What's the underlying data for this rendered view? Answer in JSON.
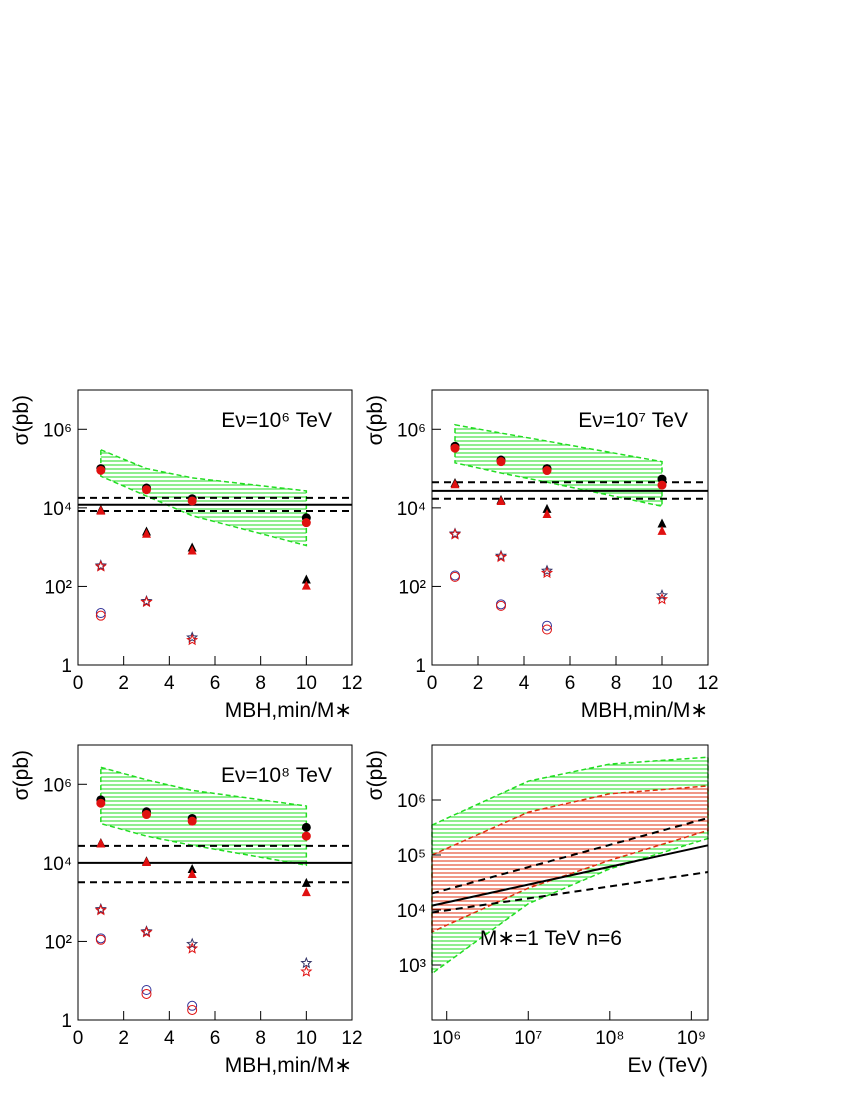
{
  "chart_data": [
    {
      "type": "scatter",
      "annotation": "Eν=10⁶ TeV",
      "ylabel": "σ(pb)",
      "xlabel": "MBH,min/M∗",
      "xlim": [
        0,
        12
      ],
      "xticks": [
        0,
        2,
        4,
        6,
        8,
        10,
        12
      ],
      "ylim": [
        1,
        10000000
      ],
      "ylog": true,
      "yticks": [
        1,
        {
          "value": 100,
          "label": "10²"
        },
        {
          "value": 10000,
          "label": "10⁴"
        },
        {
          "value": 1000000,
          "label": "10⁶"
        }
      ],
      "x": [
        1,
        3,
        5,
        10
      ],
      "band": {
        "color": "#22dd22",
        "upper": [
          300000,
          100000,
          58000,
          27000
        ],
        "lower": [
          64000,
          20000,
          6300,
          1100
        ]
      },
      "hlines": [
        {
          "value": 18000,
          "dash": true
        },
        {
          "value": 12000,
          "dash": false
        },
        {
          "value": 8300,
          "dash": true
        }
      ],
      "series": [
        {
          "marker": "circle",
          "color": "#000000",
          "values": [
            100000,
            32000,
            17000,
            5600
          ]
        },
        {
          "marker": "circle",
          "color": "#e01010",
          "values": [
            90000,
            29000,
            15000,
            4200
          ]
        },
        {
          "marker": "triangle",
          "color": "#000000",
          "values": [
            9000,
            2500,
            980,
            150
          ]
        },
        {
          "marker": "triangle",
          "color": "#e01010",
          "values": [
            8500,
            2200,
            820,
            105
          ]
        },
        {
          "marker": "star",
          "color": "#333366",
          "values": [
            340,
            42,
            5,
            null
          ]
        },
        {
          "marker": "star",
          "color": "#e01010",
          "values": [
            320,
            40,
            4.3,
            null
          ]
        },
        {
          "marker": "open-circle",
          "color": "#333399",
          "values": [
            21,
            null,
            null,
            null
          ]
        },
        {
          "marker": "open-circle",
          "color": "#e01010",
          "values": [
            18,
            null,
            null,
            null
          ]
        }
      ]
    },
    {
      "type": "scatter",
      "annotation": "Eν=10⁷ TeV",
      "ylabel": "σ(pb)",
      "xlabel": "MBH,min/M∗",
      "xlim": [
        0,
        12
      ],
      "xticks": [
        0,
        2,
        4,
        6,
        8,
        10,
        12
      ],
      "ylim": [
        1,
        10000000
      ],
      "ylog": true,
      "yticks": [
        1,
        {
          "value": 100,
          "label": "10²"
        },
        {
          "value": 10000,
          "label": "10⁴"
        },
        {
          "value": 1000000,
          "label": "10⁶"
        }
      ],
      "x": [
        1,
        3,
        5,
        10
      ],
      "band": {
        "color": "#22dd22",
        "upper": [
          1300000,
          800000,
          500000,
          150000
        ],
        "lower": [
          140000,
          77000,
          45000,
          11000
        ]
      },
      "hlines": [
        {
          "value": 45000,
          "dash": true
        },
        {
          "value": 27000,
          "dash": false
        },
        {
          "value": 17000,
          "dash": true
        }
      ],
      "series": [
        {
          "marker": "circle",
          "color": "#000000",
          "values": [
            370000,
            165000,
            100000,
            54000
          ]
        },
        {
          "marker": "circle",
          "color": "#e01010",
          "values": [
            330000,
            150000,
            89000,
            38000
          ]
        },
        {
          "marker": "triangle",
          "color": "#000000",
          "values": [
            43000,
            16000,
            9400,
            4000
          ]
        },
        {
          "marker": "triangle",
          "color": "#e01010",
          "values": [
            40000,
            15000,
            7000,
            2600
          ]
        },
        {
          "marker": "star",
          "color": "#333366",
          "values": [
            2200,
            600,
            250,
            59
          ]
        },
        {
          "marker": "star",
          "color": "#e01010",
          "values": [
            2100,
            560,
            220,
            47
          ]
        },
        {
          "marker": "open-circle",
          "color": "#333399",
          "values": [
            190,
            35,
            10,
            null
          ]
        },
        {
          "marker": "open-circle",
          "color": "#e01010",
          "values": [
            175,
            32,
            8,
            null
          ]
        }
      ]
    },
    {
      "type": "scatter",
      "annotation": "Eν=10⁸ TeV",
      "ylabel": "σ(pb)",
      "xlabel": "MBH,min/M∗",
      "xlim": [
        0,
        12
      ],
      "xticks": [
        0,
        2,
        4,
        6,
        8,
        10,
        12
      ],
      "ylim": [
        1,
        10000000
      ],
      "ylog": true,
      "yticks": [
        1,
        {
          "value": 100,
          "label": "10²"
        },
        {
          "value": 10000,
          "label": "10⁴"
        },
        {
          "value": 1000000,
          "label": "10⁶"
        }
      ],
      "x": [
        1,
        3,
        5,
        10
      ],
      "band": {
        "color": "#22dd22",
        "upper": [
          2700000,
          1300000,
          700000,
          280000
        ],
        "lower": [
          100000,
          48000,
          28000,
          8700
        ]
      },
      "hlines": [
        {
          "value": 27000,
          "dash": true
        },
        {
          "value": 10000,
          "dash": false
        },
        {
          "value": 3200,
          "dash": true
        }
      ],
      "series": [
        {
          "marker": "circle",
          "color": "#000000",
          "values": [
            400000,
            200000,
            135000,
            80000
          ]
        },
        {
          "marker": "circle",
          "color": "#e01010",
          "values": [
            330000,
            170000,
            115000,
            48000
          ]
        },
        {
          "marker": "triangle",
          "color": "#000000",
          "values": [
            32000,
            11000,
            7000,
            3100
          ]
        },
        {
          "marker": "triangle",
          "color": "#e01010",
          "values": [
            31000,
            10500,
            5200,
            1800
          ]
        },
        {
          "marker": "star",
          "color": "#333366",
          "values": [
            660,
            180,
            86,
            28
          ]
        },
        {
          "marker": "star",
          "color": "#e01010",
          "values": [
            620,
            170,
            66,
            17
          ]
        },
        {
          "marker": "open-circle",
          "color": "#333399",
          "values": [
            120,
            5.8,
            2.3,
            null
          ]
        },
        {
          "marker": "open-circle",
          "color": "#e01010",
          "values": [
            110,
            4.6,
            1.8,
            null
          ]
        }
      ]
    },
    {
      "type": "line",
      "annotation": "M∗=1 TeV  n=6",
      "ylabel": "σ(pb)",
      "xlabel": "Eν (TeV)",
      "xlim": [
        660000,
        1600000000
      ],
      "xlog": true,
      "xticks": [
        {
          "value": 1000000,
          "label": "10⁶"
        },
        {
          "value": 10000000,
          "label": "10⁷"
        },
        {
          "value": 100000000,
          "label": "10⁸"
        },
        {
          "value": 1000000000,
          "label": "10⁹"
        }
      ],
      "ylim": [
        100,
        10000000
      ],
      "ylog": true,
      "yticks": [
        {
          "value": 1000,
          "label": "10³"
        },
        {
          "value": 10000,
          "label": "10⁴"
        },
        {
          "value": 100000,
          "label": "10⁵"
        },
        {
          "value": 1000000,
          "label": "10⁶"
        }
      ],
      "bands": [
        {
          "color": "#22dd22",
          "x": [
            660000,
            10000000,
            100000000,
            1600000000
          ],
          "upper": [
            350000,
            2200000,
            4500000,
            6000000
          ],
          "lower": [
            700,
            13000,
            56000,
            200000
          ]
        },
        {
          "color": "#e03010",
          "x": [
            660000,
            10000000,
            100000000,
            1600000000
          ],
          "upper": [
            100000,
            600000,
            1300000,
            1800000
          ],
          "lower": [
            4000,
            25000,
            80000,
            280000
          ]
        }
      ],
      "series": [
        {
          "color": "#000000",
          "dash": false,
          "x": [
            660000,
            1600000000
          ],
          "values": [
            12000,
            150000
          ]
        },
        {
          "color": "#000000",
          "dash": true,
          "x": [
            660000,
            1600000000
          ],
          "values": [
            20000,
            470000
          ]
        },
        {
          "color": "#000000",
          "dash": true,
          "x": [
            660000,
            1600000000
          ],
          "values": [
            9000,
            49000
          ]
        }
      ]
    }
  ]
}
